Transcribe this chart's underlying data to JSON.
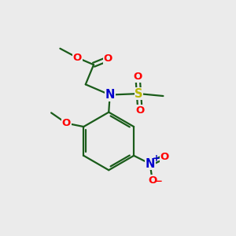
{
  "bg_color": "#ebebeb",
  "bond_color": "#1a5c1a",
  "bond_width": 1.6,
  "atom_colors": {
    "O": "#ff0000",
    "N": "#0000cc",
    "S": "#b8b800",
    "C": "#1a5c1a"
  },
  "font_size": 9.5
}
